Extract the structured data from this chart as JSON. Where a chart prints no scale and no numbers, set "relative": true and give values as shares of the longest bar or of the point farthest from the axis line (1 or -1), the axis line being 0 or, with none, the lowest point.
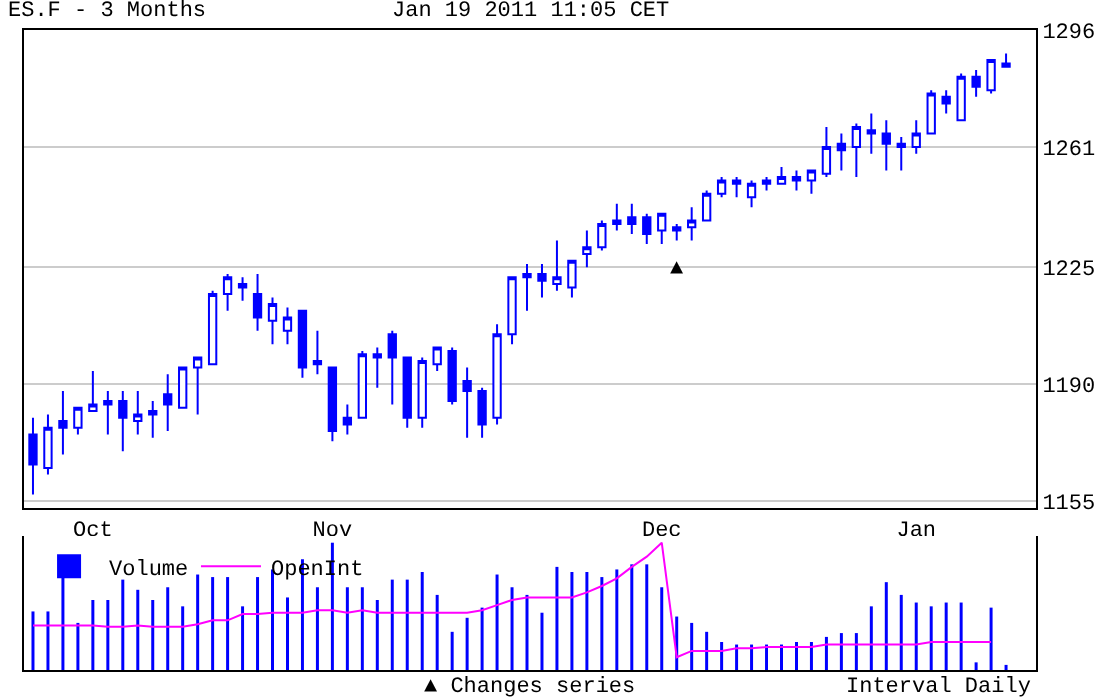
{
  "chart_data": [
    {
      "type": "candlestick",
      "title": "ES.F - 3 Months",
      "subtitle": "Jan 19 2011 11:05 CET",
      "color": "#0000ff",
      "categories": [
        null,
        null,
        null,
        null,
        "Oct",
        null,
        null,
        null,
        null,
        null,
        null,
        null,
        null,
        null,
        null,
        null,
        null,
        null,
        null,
        null,
        "Nov",
        null,
        null,
        null,
        null,
        null,
        null,
        null,
        null,
        null,
        null,
        null,
        null,
        null,
        null,
        null,
        null,
        null,
        null,
        null,
        null,
        null,
        "Dec",
        null,
        null,
        null,
        null,
        null,
        null,
        null,
        null,
        null,
        null,
        null,
        null,
        null,
        null,
        null,
        null,
        "Jan",
        null,
        null,
        null,
        null,
        null,
        null
      ],
      "ohlc": [
        [
          1175,
          1180,
          1157,
          1166
        ],
        [
          1165,
          1181,
          1163,
          1177
        ],
        [
          1179,
          1188,
          1169,
          1177
        ],
        [
          1177,
          1183,
          1175,
          1183
        ],
        [
          1182,
          1194,
          1182,
          1184
        ],
        [
          1185,
          1188,
          1175,
          1184
        ],
        [
          1185,
          1188,
          1170,
          1180
        ],
        [
          1179,
          1188,
          1175,
          1181
        ],
        [
          1181,
          1185,
          1174,
          1182
        ],
        [
          1187,
          1193,
          1176,
          1184
        ],
        [
          1183,
          1195,
          1183,
          1195
        ],
        [
          1195,
          1198,
          1181,
          1198
        ],
        [
          1196,
          1218,
          1196,
          1217
        ],
        [
          1217,
          1223,
          1212,
          1222
        ],
        [
          1220,
          1222,
          1215,
          1219
        ],
        [
          1217,
          1223,
          1206,
          1210
        ],
        [
          1209,
          1216,
          1202,
          1214
        ],
        [
          1206,
          1213,
          1202,
          1210
        ],
        [
          1212,
          1212,
          1192,
          1195
        ],
        [
          1197,
          1206,
          1193,
          1196
        ],
        [
          1195,
          1195,
          1173,
          1176
        ],
        [
          1180,
          1184,
          1175,
          1178
        ],
        [
          1180,
          1200,
          1180,
          1199
        ],
        [
          1199,
          1201,
          1189,
          1198
        ],
        [
          1205,
          1206,
          1184,
          1198
        ],
        [
          1198,
          1198,
          1177,
          1180
        ],
        [
          1180,
          1198,
          1177,
          1197
        ],
        [
          1196,
          1201,
          1194,
          1201
        ],
        [
          1200,
          1201,
          1184,
          1185
        ],
        [
          1191,
          1195,
          1174,
          1188
        ],
        [
          1188,
          1189,
          1174,
          1178
        ],
        [
          1180,
          1208,
          1178,
          1205
        ],
        [
          1205,
          1222,
          1202,
          1222
        ],
        [
          1223,
          1226,
          1212,
          1222
        ],
        [
          1223,
          1226,
          1216,
          1221
        ],
        [
          1220,
          1233,
          1218,
          1222
        ],
        [
          1219,
          1227,
          1216,
          1227
        ],
        [
          1229,
          1236,
          1225,
          1231
        ],
        [
          1231,
          1239,
          1230,
          1238
        ],
        [
          1239,
          1244,
          1236,
          1238
        ],
        [
          1240,
          1244,
          1235,
          1238
        ],
        [
          1240,
          1241,
          1232,
          1235
        ],
        [
          1236,
          1241,
          1232,
          1241
        ],
        [
          1237,
          1238,
          1233,
          1236
        ],
        [
          1237,
          1243,
          1233,
          1239
        ],
        [
          1239,
          1248,
          1239,
          1247
        ],
        [
          1247,
          1252,
          1246,
          1251
        ],
        [
          1251,
          1252,
          1246,
          1250
        ],
        [
          1246,
          1251,
          1243,
          1250
        ],
        [
          1251,
          1252,
          1248,
          1250
        ],
        [
          1250,
          1255,
          1250,
          1252
        ],
        [
          1252,
          1254,
          1248,
          1251
        ],
        [
          1251,
          1254,
          1247,
          1254
        ],
        [
          1253,
          1267,
          1252,
          1261
        ],
        [
          1262,
          1265,
          1254,
          1260
        ],
        [
          1261,
          1268,
          1252,
          1267
        ],
        [
          1266,
          1271,
          1259,
          1265
        ],
        [
          1265,
          1269,
          1254,
          1262
        ],
        [
          1262,
          1264,
          1254,
          1261
        ],
        [
          1261,
          1269,
          1259,
          1265
        ],
        [
          1265,
          1278,
          1265,
          1277
        ],
        [
          1276,
          1278,
          1271,
          1274
        ],
        [
          1269,
          1283,
          1269,
          1282
        ],
        [
          1282,
          1284,
          1276,
          1279
        ],
        [
          1278,
          1287,
          1277,
          1287
        ],
        [
          1286,
          1289,
          1285,
          1285
        ]
      ],
      "ylim": [
        1153,
        1296
      ],
      "yticks": [
        1155,
        1190,
        1225,
        1261,
        1296
      ],
      "grid": "y",
      "annotations": [
        "▲"
      ]
    },
    {
      "type": "bar",
      "relative": true,
      "legend": "top left",
      "categories": [
        null,
        null,
        null,
        null,
        null,
        null,
        null,
        null,
        null,
        null,
        null,
        null,
        null,
        null,
        null,
        null,
        null,
        null,
        null,
        null,
        null,
        null,
        null,
        null,
        null,
        null,
        null,
        null,
        null,
        null,
        null,
        null,
        null,
        null,
        null,
        null,
        null,
        null,
        null,
        null,
        null,
        null,
        null,
        null,
        null,
        null,
        null,
        null,
        null,
        null,
        null,
        null,
        null,
        null,
        null,
        null,
        null,
        null,
        null,
        null,
        null,
        null,
        null,
        null,
        null,
        null
      ],
      "series": [
        {
          "name": "Volume",
          "color": "#0000ff",
          "values": [
            0.46,
            0.46,
            0.75,
            0.37,
            0.55,
            0.55,
            0.71,
            0.63,
            0.55,
            0.65,
            0.5,
            0.75,
            0.73,
            0.73,
            0.5,
            0.73,
            0.79,
            0.57,
            0.87,
            0.65,
            1,
            0.65,
            0.65,
            0.55,
            0.71,
            0.71,
            0.77,
            0.59,
            0.3,
            0.41,
            0.49,
            0.75,
            0.65,
            0.59,
            0.45,
            0.81,
            0.77,
            0.77,
            0.73,
            0.79,
            0.83,
            0.83,
            0.65,
            0.42,
            0.37,
            0.3,
            0.22,
            0.2,
            0.2,
            0.2,
            0.2,
            0.22,
            0.22,
            0.26,
            0.29,
            0.29,
            0.5,
            0.69,
            0.59,
            0.53,
            0.5,
            0.53,
            0.53,
            0.06,
            0.49,
            0.04
          ]
        }
      ],
      "annotations": [
        "▲ Changes series",
        "Interval Daily"
      ]
    },
    {
      "type": "line",
      "relative": true,
      "legend": "top left",
      "categories": [
        null,
        null,
        null,
        null,
        null,
        null,
        null,
        null,
        null,
        null,
        null,
        null,
        null,
        null,
        null,
        null,
        null,
        null,
        null,
        null,
        null,
        null,
        null,
        null,
        null,
        null,
        null,
        null,
        null,
        null,
        null,
        null,
        null,
        null,
        null,
        null,
        null,
        null,
        null,
        null,
        null,
        null,
        null,
        null,
        null,
        null,
        null,
        null,
        null,
        null,
        null,
        null,
        null,
        null,
        null,
        null,
        null,
        null,
        null,
        null,
        null,
        null,
        null,
        null,
        null
      ],
      "series": [
        {
          "name": "OpenInt",
          "color": "#ff00ff",
          "values": [
            0.35,
            0.35,
            0.35,
            0.35,
            0.35,
            0.34,
            0.34,
            0.35,
            0.34,
            0.34,
            0.34,
            0.36,
            0.39,
            0.39,
            0.44,
            0.44,
            0.45,
            0.45,
            0.45,
            0.47,
            0.47,
            0.45,
            0.47,
            0.45,
            0.45,
            0.45,
            0.45,
            0.45,
            0.45,
            0.45,
            0.47,
            0.51,
            0.55,
            0.57,
            0.57,
            0.57,
            0.57,
            0.61,
            0.66,
            0.72,
            0.81,
            0.89,
            1,
            0.1,
            0.15,
            0.15,
            0.15,
            0.17,
            0.17,
            0.18,
            0.18,
            0.18,
            0.18,
            0.2,
            0.2,
            0.2,
            0.2,
            0.2,
            0.2,
            0.2,
            0.22,
            0.22,
            0.22,
            0.22,
            0.22
          ]
        }
      ]
    }
  ]
}
